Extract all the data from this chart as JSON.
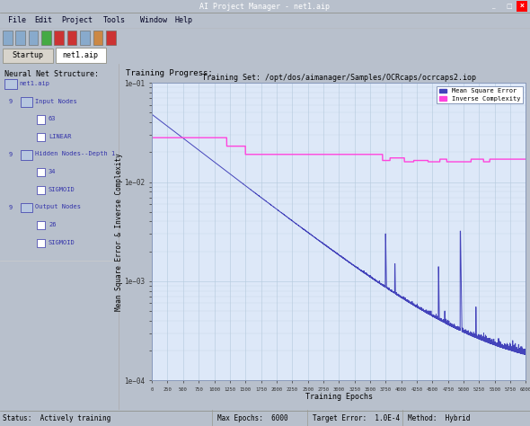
{
  "title": "Training Set: /opt/dos/aimanager/Samples/OCRcaps/ocrcaps2.iop",
  "window_title": "AI Project Manager - net1.aip",
  "xlabel": "Training Epochs",
  "ylabel": "Mean Square Error & Inverse Complexity",
  "legend_mse": "Mean Square Error",
  "legend_ic": "Inverse Complexity",
  "training_progress_label": "Training Progress:",
  "neural_net_label": "Neural Net Structure:",
  "status_text": "Status:  Actively training",
  "max_epochs_text": "Max Epochs:  6000",
  "target_error_text": "Target Error:  1.0E-4",
  "method_text": "Method:  Hybrid",
  "tab1": "Startup",
  "tab2": "net1.aip",
  "menu_items": [
    "File",
    "Edit",
    "Project",
    "Tools",
    "Window",
    "Help"
  ],
  "x_max": 6000,
  "x_ticks": [
    0,
    250,
    500,
    750,
    1000,
    1250,
    1500,
    1750,
    2000,
    2250,
    2500,
    2750,
    3000,
    3250,
    3500,
    3750,
    4000,
    4250,
    4500,
    4750,
    5000,
    5250,
    5500,
    5750,
    6000
  ],
  "y_min": 0.0001,
  "y_max": 0.1,
  "plot_bg_color": "#dde8f8",
  "panel_bg_color": "#c8d4e8",
  "window_bg_color": "#b8c0cc",
  "left_panel_upper_bg": "#e8eaf0",
  "left_panel_lower_bg": "#d0d4dc",
  "mse_color": "#4444bb",
  "ic_color": "#ff44dd",
  "grid_color": "#b8cce0",
  "title_bar_bg": "#222222",
  "title_bar_fg": "#ffffff",
  "menu_bar_bg": "#f0eeea",
  "toolbar_bg": "#e8e4de",
  "tab_bar_bg": "#d0ccc4",
  "tab_active_bg": "#ffffff",
  "tab_inactive_bg": "#d8d4cc",
  "status_bar_bg": "#d4d0c8",
  "tree_color": "#3333aa",
  "divider_color": "#c0c0c0"
}
